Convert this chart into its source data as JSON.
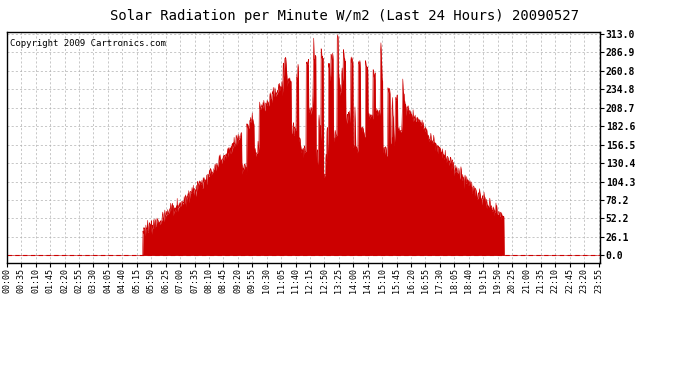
{
  "title": "Solar Radiation per Minute W/m2 (Last 24 Hours) 20090527",
  "copyright_text": "Copyright 2009 Cartronics.com",
  "background_color": "#ffffff",
  "plot_bg_color": "#ffffff",
  "fill_color": "#cc0000",
  "line_color": "#cc0000",
  "grid_color": "#b0b0b0",
  "grid_linestyle": "--",
  "baseline_color": "#cc0000",
  "y_ticks": [
    0.0,
    26.1,
    52.2,
    78.2,
    104.3,
    130.4,
    156.5,
    182.6,
    208.7,
    234.8,
    260.8,
    286.9,
    313.0
  ],
  "y_max": 313.0,
  "n_minutes": 1440,
  "title_fontsize": 10,
  "copyright_fontsize": 6.5,
  "tick_fontsize": 6,
  "ytick_fontsize": 7,
  "sunrise_hour": 5.5,
  "sunset_hour": 20.1,
  "peak_hour": 13.25,
  "peak_value": 280,
  "sigma": 3.8,
  "tick_labels": [
    "00:00",
    "00:35",
    "01:10",
    "01:45",
    "02:20",
    "02:55",
    "03:30",
    "04:05",
    "04:40",
    "05:15",
    "05:50",
    "06:25",
    "07:00",
    "07:35",
    "08:10",
    "08:45",
    "09:20",
    "09:55",
    "10:30",
    "11:05",
    "11:40",
    "12:15",
    "12:50",
    "13:25",
    "14:00",
    "14:35",
    "15:10",
    "15:45",
    "16:20",
    "16:55",
    "17:30",
    "18:05",
    "18:40",
    "19:15",
    "19:50",
    "20:25",
    "21:00",
    "21:35",
    "22:10",
    "22:45",
    "23:20",
    "23:55"
  ]
}
